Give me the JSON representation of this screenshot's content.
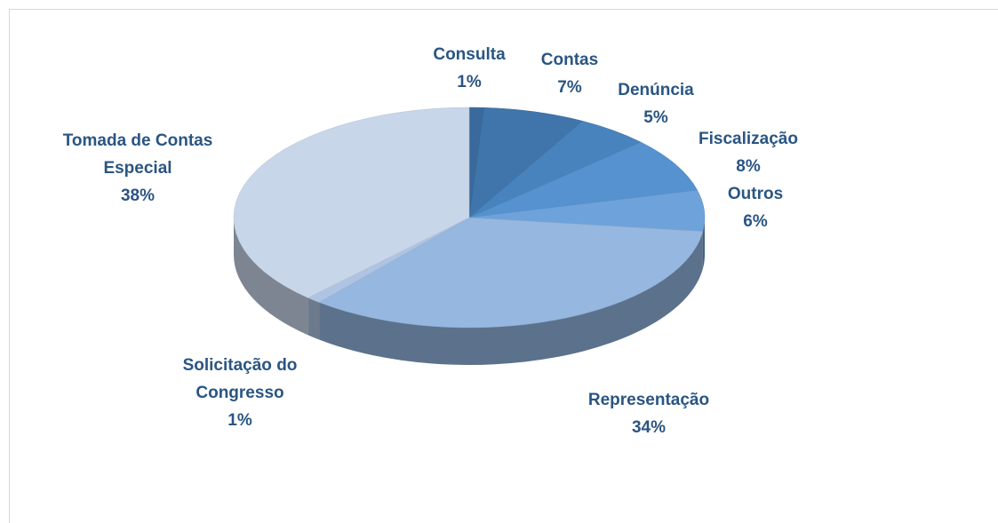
{
  "chart_data": {
    "type": "pie3d",
    "categories": [
      "Consulta",
      "Contas",
      "Denúncia",
      "Fiscalização",
      "Outros",
      "Representação",
      "Solicitação do Congresso",
      "Tomada de Contas Especial"
    ],
    "values": [
      1,
      7,
      5,
      8,
      6,
      34,
      1,
      38
    ],
    "value_labels": [
      "1%",
      "7%",
      "5%",
      "8%",
      "6%",
      "34%",
      "1%",
      "38%"
    ],
    "colors": [
      "#3a6a9b",
      "#3f75aa",
      "#4883bd",
      "#5592cf",
      "#6ea2da",
      "#95b7e0",
      "#aec4e2",
      "#c8d6ea"
    ]
  }
}
